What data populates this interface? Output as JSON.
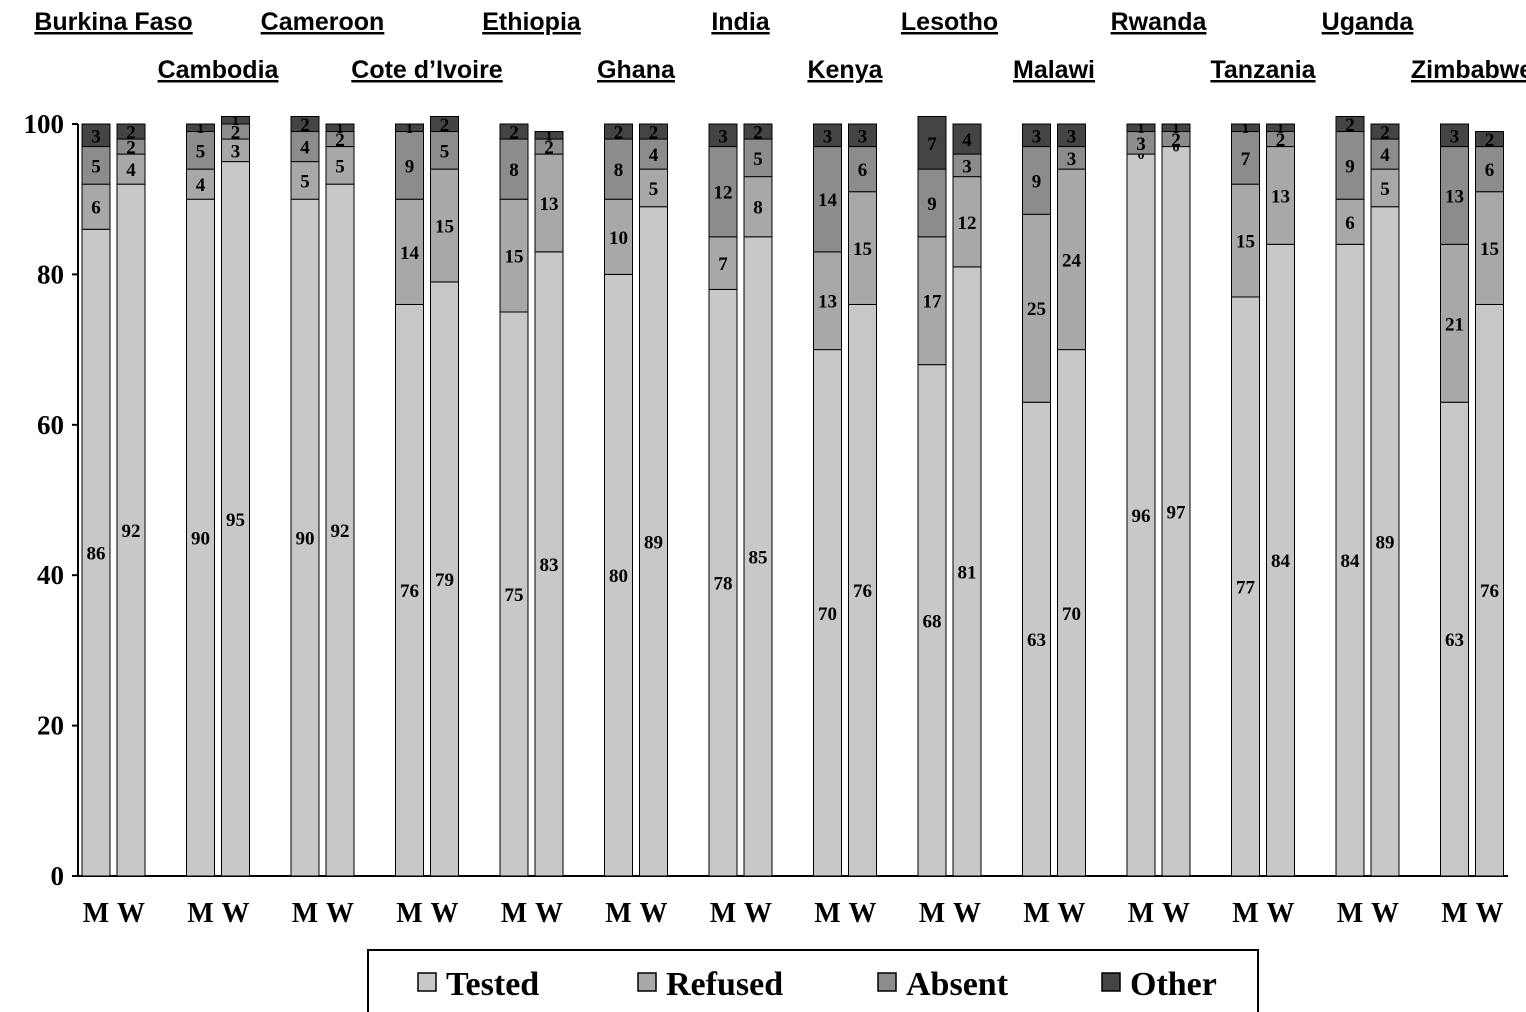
{
  "chart_data": {
    "type": "bar",
    "stacked": true,
    "title": "",
    "xlabel": "",
    "ylabel": "",
    "ylim": [
      0,
      100
    ],
    "yticks": [
      "0",
      "20",
      "40",
      "60",
      "80",
      "100"
    ],
    "grid": false,
    "legend_placement": "bottom",
    "bar_labels": [
      "M",
      "W"
    ],
    "countries": [
      "Burkina Faso",
      "Cambodia",
      "Cameroon",
      "Cote d’Ivoire",
      "Ethiopia",
      "Ghana",
      "India",
      "Kenya",
      "Lesotho",
      "Malawi",
      "Rwanda",
      "Tanzania",
      "Uganda",
      "Zimbabwe"
    ],
    "series": [
      {
        "name": "Tested",
        "color": "#c8c8c8",
        "values": {
          "M": [
            86,
            90,
            90,
            76,
            75,
            80,
            78,
            70,
            68,
            63,
            96,
            77,
            84,
            63
          ],
          "W": [
            92,
            95,
            92,
            79,
            83,
            89,
            85,
            76,
            81,
            70,
            97,
            84,
            89,
            76
          ]
        }
      },
      {
        "name": "Refused",
        "color": "#a8a8a8",
        "values": {
          "M": [
            6,
            4,
            5,
            14,
            15,
            10,
            7,
            13,
            17,
            25,
            0,
            15,
            6,
            21
          ],
          "W": [
            4,
            3,
            5,
            15,
            13,
            5,
            8,
            15,
            12,
            24,
            0,
            13,
            5,
            15
          ]
        }
      },
      {
        "name": "Absent",
        "color": "#8c8c8c",
        "values": {
          "M": [
            5,
            5,
            4,
            9,
            8,
            8,
            12,
            14,
            9,
            9,
            3,
            7,
            9,
            13
          ],
          "W": [
            2,
            2,
            2,
            5,
            2,
            4,
            5,
            6,
            3,
            3,
            2,
            2,
            4,
            6
          ]
        }
      },
      {
        "name": "Other",
        "color": "#444444",
        "values": {
          "M": [
            3,
            1,
            2,
            1,
            2,
            2,
            3,
            3,
            7,
            3,
            1,
            1,
            2,
            3
          ],
          "W": [
            2,
            1,
            1,
            2,
            1,
            2,
            2,
            3,
            4,
            3,
            1,
            1,
            2,
            2
          ]
        }
      }
    ]
  }
}
